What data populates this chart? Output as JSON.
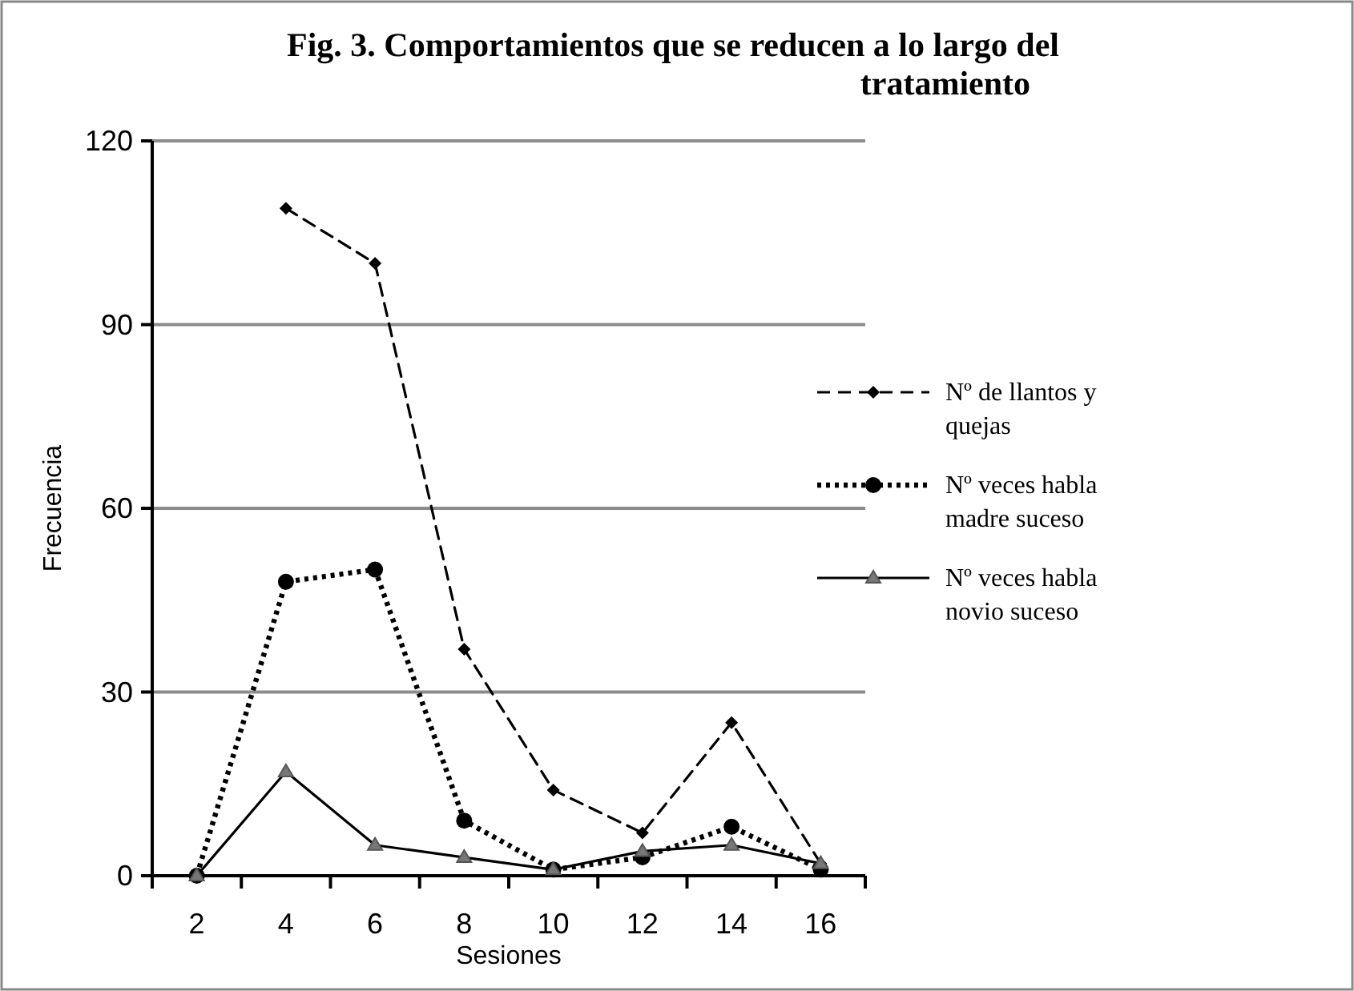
{
  "chart_data": {
    "type": "line",
    "title": "Fig. 3. Comportamientos que se reducen a lo largo del tratamiento",
    "xlabel": "Sesiones",
    "ylabel": "Frecuencia",
    "categories": [
      "2",
      "4",
      "6",
      "8",
      "10",
      "12",
      "14",
      "16"
    ],
    "series": [
      {
        "name": " Nº de llantos y quejas",
        "color": "#000000",
        "line_style": "dashed",
        "marker": "diamond",
        "values": [
          null,
          109,
          100,
          37,
          14,
          7,
          25,
          2
        ]
      },
      {
        "name": "Nº veces habla madre suceso",
        "color": "#000000",
        "line_style": "dotted",
        "marker": "circle",
        "values": [
          0,
          48,
          50,
          9,
          1,
          3,
          8,
          1
        ]
      },
      {
        "name": "Nº veces habla novio suceso",
        "color": "#000000",
        "line_style": "solid",
        "marker": "triangle",
        "values": [
          0,
          17,
          5,
          3,
          1,
          4,
          5,
          2
        ]
      }
    ],
    "ylim": [
      0,
      120
    ],
    "yticks": [
      0,
      30,
      60,
      90,
      120
    ],
    "grid": "y",
    "legend": "right"
  }
}
